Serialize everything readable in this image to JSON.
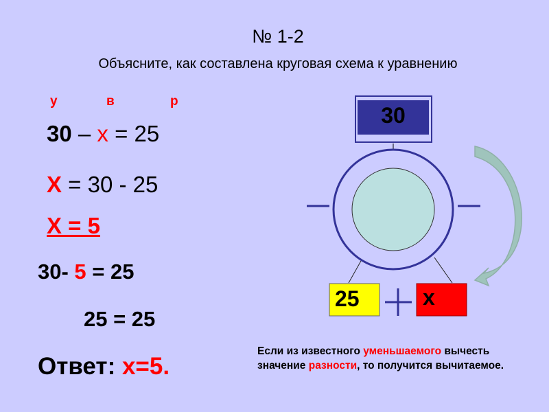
{
  "title": "№ 1-2",
  "subtitle": "Объясните, как составлена круговая схема к уравнению",
  "labels": {
    "u": "у",
    "v": "в",
    "r": "р"
  },
  "equation": {
    "a": "30",
    "minus": " – ",
    "x": "x",
    "rest": " = 25"
  },
  "step1": {
    "x": "X",
    "rest": " = 30 - 25"
  },
  "step2": "X = 5",
  "check": {
    "a": "30- ",
    "x": "5",
    "rest": " = 25"
  },
  "check2": "25 = 25",
  "answer": {
    "label": "Ответ: ",
    "value": "x=5."
  },
  "diagram": {
    "top_value": "30",
    "left_value": "25",
    "right_value": "x",
    "colors": {
      "top": "#333399",
      "left": "#ffff00",
      "right": "#ff0000",
      "inner_circle": "#bbe0e0",
      "arrow": "#8fb8b0"
    }
  },
  "note": {
    "p1": "Если из известного ",
    "h1": "уменьшаемого",
    "p2": " вычесть значение ",
    "h2": "разности",
    "p3": ", то получится вычитаемое."
  }
}
